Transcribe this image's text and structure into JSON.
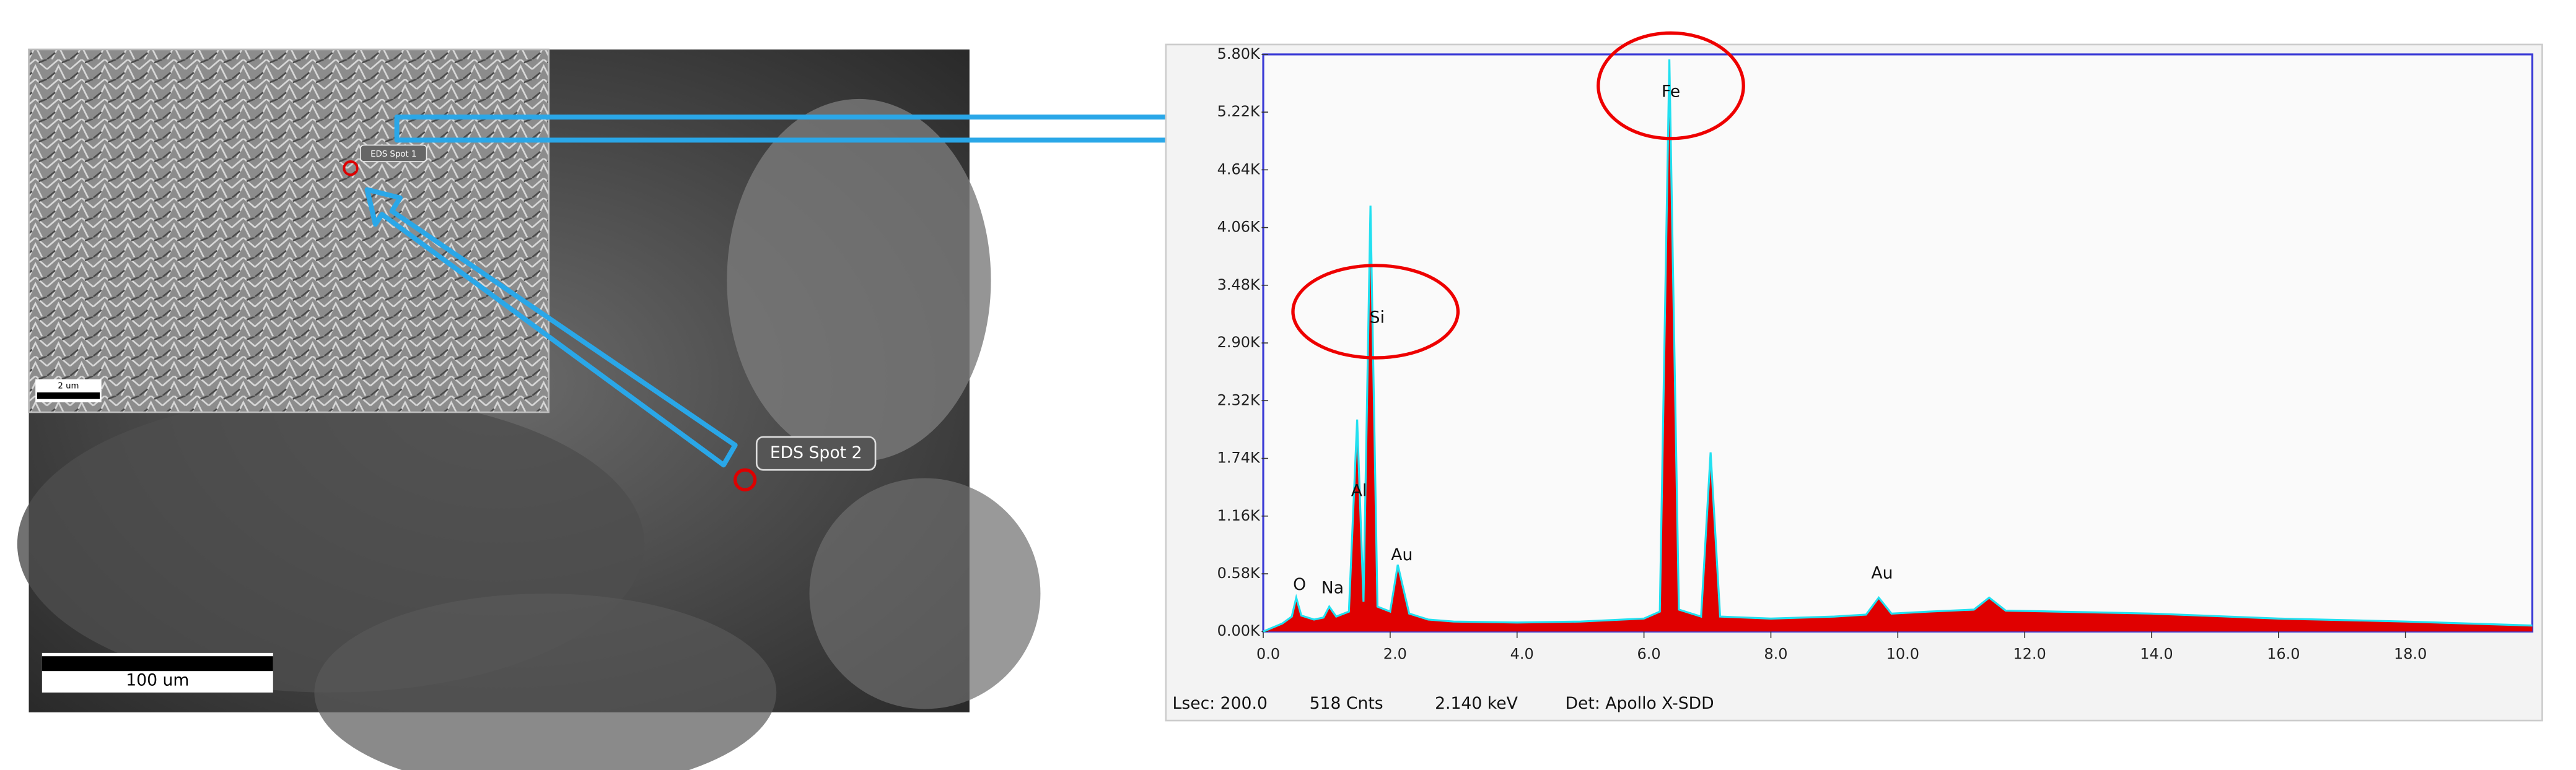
{
  "sem_image": {
    "spot_labels": [
      "EDS Spot 2",
      "EDS Spot 1"
    ],
    "scale_bars": [
      "100 um",
      "2 um"
    ]
  },
  "chart_data": {
    "type": "area",
    "xlim": [
      0,
      20
    ],
    "ylim": [
      0,
      5800
    ],
    "xticks": [
      {
        "value": 0,
        "label": "0.0"
      },
      {
        "value": 2,
        "label": "2.0"
      },
      {
        "value": 4,
        "label": "4.0"
      },
      {
        "value": 6,
        "label": "6.0"
      },
      {
        "value": 8,
        "label": "8.0"
      },
      {
        "value": 10,
        "label": "10.0"
      },
      {
        "value": 12,
        "label": "12.0"
      },
      {
        "value": 14,
        "label": "14.0"
      },
      {
        "value": 16,
        "label": "16.0"
      },
      {
        "value": 18,
        "label": "18.0"
      }
    ],
    "yticks": [
      {
        "value": 0,
        "label": "0.00K"
      },
      {
        "value": 580,
        "label": "0.58K"
      },
      {
        "value": 1160,
        "label": "1.16K"
      },
      {
        "value": 1740,
        "label": "1.74K"
      },
      {
        "value": 2320,
        "label": "2.32K"
      },
      {
        "value": 2900,
        "label": "2.90K"
      },
      {
        "value": 3480,
        "label": "3.48K"
      },
      {
        "value": 4060,
        "label": "4.06K"
      },
      {
        "value": 4640,
        "label": "4.64K"
      },
      {
        "value": 5220,
        "label": "5.22K"
      },
      {
        "value": 5800,
        "label": "5.80K"
      }
    ],
    "series": [
      {
        "color": "#e00000",
        "outline_color": "#22e0f0",
        "x": [
          0.0,
          0.3,
          0.45,
          0.52,
          0.6,
          0.8,
          0.95,
          1.04,
          1.15,
          1.35,
          1.48,
          1.58,
          1.69,
          1.8,
          2.0,
          2.12,
          2.3,
          2.6,
          3.0,
          4.0,
          5.0,
          6.0,
          6.25,
          6.4,
          6.55,
          6.9,
          7.05,
          7.2,
          8.0,
          9.0,
          9.5,
          9.7,
          9.9,
          10.5,
          11.2,
          11.44,
          11.7,
          12.5,
          14.0,
          16.0,
          18.0,
          20.0
        ],
        "values": [
          0,
          80,
          150,
          340,
          160,
          120,
          140,
          250,
          150,
          200,
          2130,
          300,
          4280,
          250,
          200,
          670,
          180,
          120,
          100,
          90,
          100,
          130,
          200,
          5750,
          220,
          150,
          1800,
          150,
          130,
          150,
          170,
          340,
          180,
          200,
          220,
          340,
          210,
          200,
          180,
          130,
          100,
          60
        ]
      }
    ],
    "peak_labels": [
      "O",
      "Na",
      "Al",
      "Si",
      "Au",
      "Fe",
      "Au"
    ],
    "footer": [
      "Lsec: 200.0",
      "518 Cnts",
      "2.140 keV",
      "Det: Apollo X-SDD"
    ]
  }
}
